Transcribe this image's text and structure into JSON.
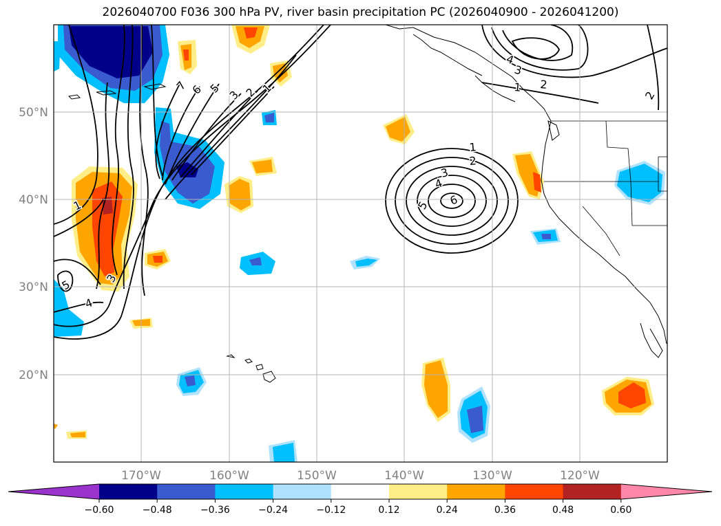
{
  "title": "2026040700 F036 300 hPa PV, river basin precipitation PC (2026040900 - 2026041200)",
  "lat_labels": [
    "50°N",
    "40°N",
    "30°N",
    "20°N"
  ],
  "lon_labels": [
    "170°W",
    "160°W",
    "150°W",
    "140°W",
    "130°W",
    "120°W"
  ],
  "colorbar": {
    "ticks": [
      "−0.60",
      "−0.48",
      "−0.36",
      "−0.24",
      "−0.12",
      "0.12",
      "0.24",
      "0.36",
      "0.48",
      "0.60"
    ],
    "colors": [
      "#9933cc",
      "#00008b",
      "#3a5bd0",
      "#00bfff",
      "#b0e2ff",
      "#ffffff",
      "#ffee88",
      "#ffa500",
      "#ff4500",
      "#b22222",
      "#ff88aa"
    ]
  },
  "contour_labels": {
    "western_front": [
      "7",
      "6",
      "5",
      "3",
      "2",
      "1"
    ],
    "west_low": [
      "1",
      "5",
      "3",
      "4"
    ],
    "mid_pacific_low": [
      "1",
      "2",
      "3",
      "4",
      "5",
      "6"
    ],
    "gulf_of_alaska_low": [
      "4",
      "3",
      "2",
      "1"
    ],
    "east_edge": [
      "2"
    ]
  },
  "colors": {
    "axis": "#000000",
    "grid": "#b4b4b4",
    "label": "#808080"
  }
}
